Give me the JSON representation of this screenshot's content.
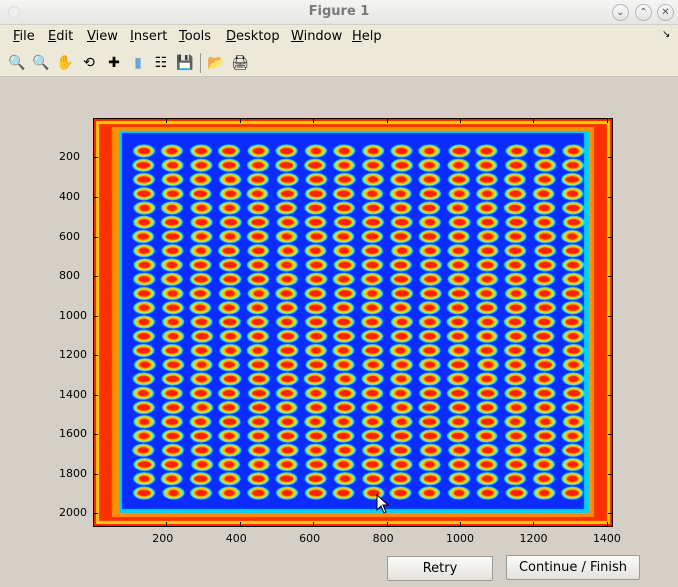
{
  "window": {
    "title": "Figure 1",
    "controls": [
      "minimize",
      "maximize",
      "close"
    ]
  },
  "menubar": {
    "items": [
      {
        "label": "File",
        "mnemonic": "F"
      },
      {
        "label": "Edit",
        "mnemonic": "E"
      },
      {
        "label": "View",
        "mnemonic": "V"
      },
      {
        "label": "Insert",
        "mnemonic": "I"
      },
      {
        "label": "Tools",
        "mnemonic": "T"
      },
      {
        "label": "Desktop",
        "mnemonic": "D"
      },
      {
        "label": "Window",
        "mnemonic": "W"
      },
      {
        "label": "Help",
        "mnemonic": "H"
      }
    ]
  },
  "toolbar": {
    "icons": [
      "zoom-in-icon",
      "zoom-out-icon",
      "pan-hand-icon",
      "rotate-3d-icon",
      "data-cursor-icon",
      "colorbar-icon",
      "legend-icon",
      "save-icon",
      "open-folder-icon",
      "print-icon"
    ]
  },
  "chart_data": {
    "type": "heatmap",
    "colormap": "jet",
    "xlim": [
      0.5,
      1416.5
    ],
    "ylim": [
      0.5,
      2068.5
    ],
    "y_reversed": true,
    "xticks": [
      200,
      400,
      600,
      800,
      1000,
      1200,
      1400
    ],
    "yticks": [
      200,
      400,
      600,
      800,
      1000,
      1200,
      1400,
      1600,
      1800,
      2000
    ],
    "grid": false
  },
  "buttons": {
    "retry": "Retry",
    "continue": "Continue / Finish"
  }
}
